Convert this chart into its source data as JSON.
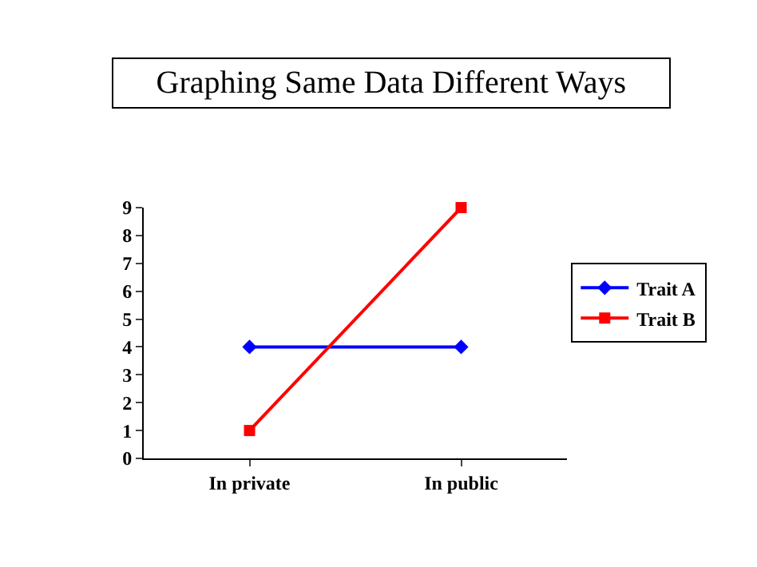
{
  "chart_data": {
    "type": "line",
    "title": "Graphing Same Data Different Ways",
    "categories": [
      "In private",
      "In public"
    ],
    "series": [
      {
        "name": "Trait A",
        "color": "#0000ff",
        "values": [
          4,
          4
        ],
        "marker": "diamond"
      },
      {
        "name": "Trait B",
        "color": "#ff0000",
        "values": [
          1,
          9
        ],
        "marker": "square"
      }
    ],
    "ylim": [
      0,
      9
    ],
    "yticks": [
      0,
      1,
      2,
      3,
      4,
      5,
      6,
      7,
      8,
      9
    ],
    "legend": "right",
    "line_style": "solid"
  }
}
